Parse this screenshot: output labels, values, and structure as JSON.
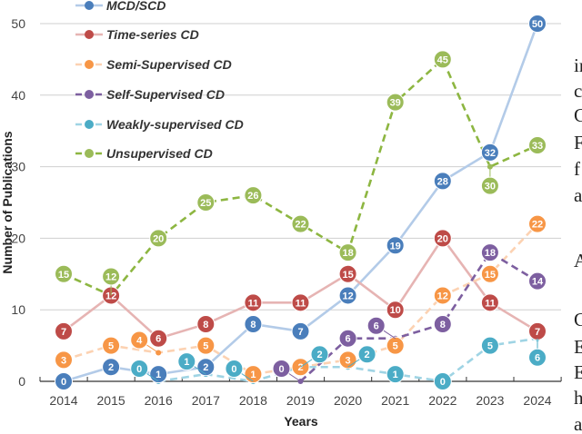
{
  "chart_data": {
    "type": "line",
    "title": "",
    "xlabel": "Years",
    "ylabel": "Number of Publications",
    "ylim": [
      0,
      50
    ],
    "yticks": [
      0,
      10,
      20,
      30,
      40,
      50
    ],
    "grid": true,
    "legend_position": "top-left",
    "x": [
      2014,
      2015,
      2016,
      2017,
      2018,
      2019,
      2020,
      2021,
      2022,
      2023,
      2024
    ],
    "series": [
      {
        "name": "MCD/SCD",
        "dashed": false,
        "line_color": "#b3cbe8",
        "marker_color": "#4a7ebb",
        "values": [
          0,
          2,
          1,
          2,
          8,
          7,
          12,
          19,
          28,
          32,
          50
        ]
      },
      {
        "name": "Time-series CD",
        "dashed": false,
        "line_color": "#e6b4b3",
        "marker_color": "#be4b48",
        "values": [
          7,
          12,
          6,
          8,
          11,
          11,
          15,
          10,
          20,
          11,
          7
        ]
      },
      {
        "name": "Semi-Supervised CD",
        "dashed": true,
        "line_color": "#fcd2b2",
        "marker_color": "#f79646",
        "values": [
          3,
          5,
          4,
          5,
          1,
          2,
          3,
          5,
          12,
          15,
          22
        ]
      },
      {
        "name": "Self-Supervised CD",
        "dashed": true,
        "line_color": "#7d5fa0",
        "marker_color": "#7d5fa0",
        "values": [
          null,
          null,
          null,
          null,
          null,
          0,
          6,
          6,
          8,
          18,
          14
        ]
      },
      {
        "name": "Weakly-supervised CD",
        "dashed": true,
        "line_color": "#9fd4e4",
        "marker_color": "#4bacc6",
        "values": [
          null,
          null,
          0,
          1,
          0,
          2,
          2,
          1,
          0,
          5,
          6
        ]
      },
      {
        "name": "Unsupervised CD",
        "dashed": true,
        "line_color": "#8db641",
        "marker_color": "#9bbb59",
        "values": [
          15,
          12,
          20,
          25,
          26,
          22,
          18,
          39,
          45,
          30,
          33
        ]
      }
    ]
  },
  "side_text_fragments": [
    "in",
    "c",
    "C",
    "F",
    "f",
    "a",
    "A",
    "C",
    "E",
    "E",
    "h",
    "a"
  ]
}
